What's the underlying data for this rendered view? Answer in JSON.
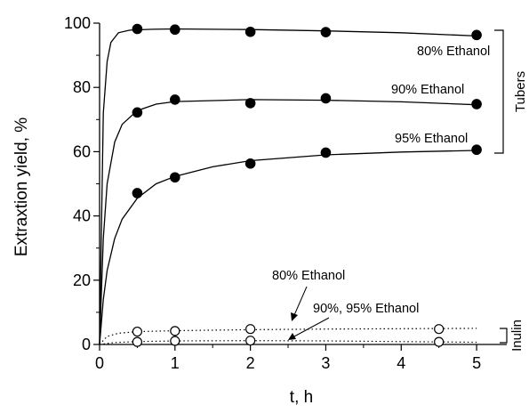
{
  "chart_data": {
    "type": "scatter",
    "xlabel": "t, h",
    "ylabel": "Extraxtion yield, %",
    "xlim": [
      0,
      5.4
    ],
    "ylim": [
      0,
      100
    ],
    "xticks": [
      0,
      1,
      2,
      3,
      4,
      5
    ],
    "yticks": [
      0,
      20,
      40,
      60,
      80,
      100
    ],
    "grid": false,
    "series": [
      {
        "name": "80% Ethanol",
        "group": "Tubers",
        "marker": "filled-circle",
        "x": [
          0.5,
          1,
          2,
          3,
          5
        ],
        "y": [
          98.2,
          98.0,
          97.3,
          97.2,
          96.3
        ],
        "fit": [
          [
            0,
            0
          ],
          [
            0.05,
            72
          ],
          [
            0.1,
            88
          ],
          [
            0.15,
            94
          ],
          [
            0.25,
            97
          ],
          [
            0.4,
            97.8
          ],
          [
            0.7,
            98.1
          ],
          [
            1,
            98.2
          ],
          [
            2,
            98.0
          ],
          [
            3,
            97.6
          ],
          [
            4,
            97.0
          ],
          [
            5,
            96.0
          ]
        ],
        "fit_style": "solid"
      },
      {
        "name": "90% Ethanol",
        "group": "Tubers",
        "marker": "filled-circle",
        "x": [
          0.5,
          1,
          2,
          3,
          5
        ],
        "y": [
          72.2,
          76.2,
          75.1,
          76.6,
          74.8
        ],
        "fit": [
          [
            0,
            0
          ],
          [
            0.05,
            33
          ],
          [
            0.1,
            50
          ],
          [
            0.2,
            63
          ],
          [
            0.3,
            68.5
          ],
          [
            0.5,
            72.8
          ],
          [
            0.75,
            74.8
          ],
          [
            1,
            75.6
          ],
          [
            2,
            76.2
          ],
          [
            3,
            76.0
          ],
          [
            4,
            75.5
          ],
          [
            5,
            74.6
          ]
        ],
        "fit_style": "solid"
      },
      {
        "name": "95% Ethanol",
        "group": "Tubers",
        "marker": "filled-circle",
        "x": [
          0.5,
          1,
          2,
          3,
          5
        ],
        "y": [
          47.1,
          52.0,
          56.3,
          59.7,
          60.6
        ],
        "fit": [
          [
            0,
            0
          ],
          [
            0.05,
            14
          ],
          [
            0.1,
            23
          ],
          [
            0.2,
            33
          ],
          [
            0.3,
            39
          ],
          [
            0.5,
            45.5
          ],
          [
            0.75,
            50
          ],
          [
            1,
            52.3
          ],
          [
            1.5,
            55.3
          ],
          [
            2,
            57.2
          ],
          [
            3,
            59
          ],
          [
            4,
            59.9
          ],
          [
            5,
            60.4
          ]
        ],
        "fit_style": "solid"
      },
      {
        "name": "80% Ethanol",
        "group": "Inulin",
        "marker": "open-circle",
        "x": [
          0.5,
          1,
          2,
          4.5
        ],
        "y": [
          4.0,
          4.2,
          4.8,
          4.8
        ],
        "fit": [
          [
            0,
            0
          ],
          [
            0.1,
            2.5
          ],
          [
            0.25,
            3.5
          ],
          [
            0.5,
            4.0
          ],
          [
            1,
            4.3
          ],
          [
            2,
            4.6
          ],
          [
            3,
            4.8
          ],
          [
            4,
            4.9
          ],
          [
            5,
            5.0
          ]
        ],
        "fit_style": "dotted"
      },
      {
        "name": "90%, 95% Ethanol",
        "group": "Inulin",
        "marker": "open-circle",
        "x": [
          0.5,
          1,
          2,
          4.5
        ],
        "y": [
          0.8,
          1.1,
          1.2,
          0.8
        ],
        "fit": [
          [
            0,
            0
          ],
          [
            0.2,
            0.6
          ],
          [
            0.5,
            0.9
          ],
          [
            1,
            1.1
          ],
          [
            2,
            1.2
          ],
          [
            3,
            1.1
          ],
          [
            4,
            0.9
          ],
          [
            5,
            0.7
          ]
        ],
        "fit_style": "dotted"
      }
    ],
    "annotations": {
      "tubers_80": "80% Ethanol",
      "tubers_90": "90% Ethanol",
      "tubers_95": "95% Ethanol",
      "inulin_80": "80% Ethanol",
      "inulin_90_95": "90%, 95% Ethanol",
      "bracket_tubers": "Tubers",
      "bracket_inulin": "Inulin"
    }
  }
}
